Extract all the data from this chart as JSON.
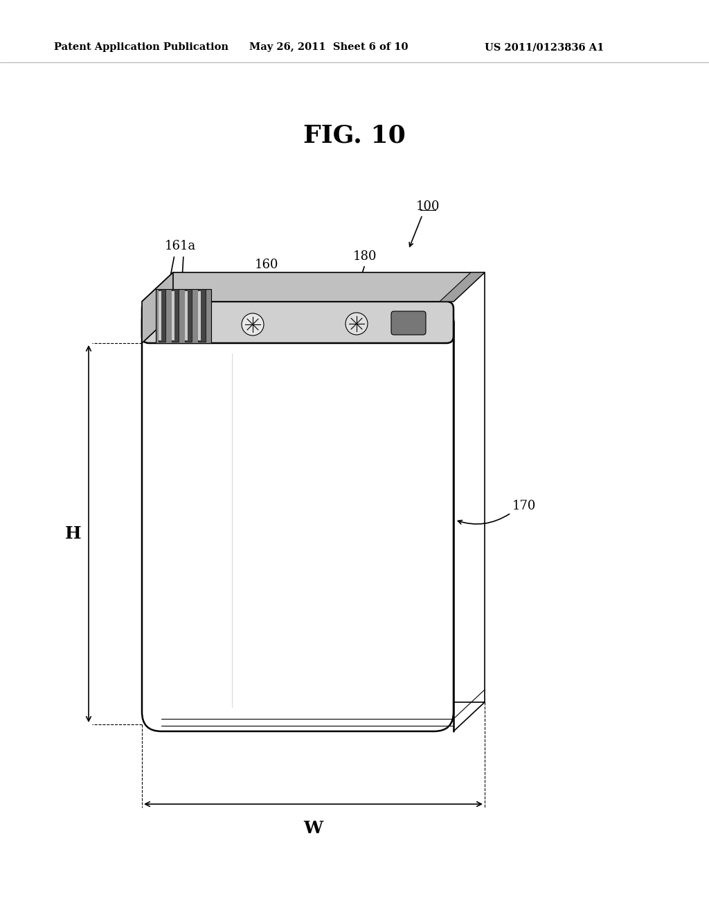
{
  "title": "FIG. 10",
  "header_left": "Patent Application Publication",
  "header_mid": "May 26, 2011  Sheet 6 of 10",
  "header_right": "US 2011/0123836 A1",
  "bg_color": "#ffffff",
  "line_color": "#000000",
  "lw_thin": 0.8,
  "lw_med": 1.2,
  "lw_thick": 1.8
}
